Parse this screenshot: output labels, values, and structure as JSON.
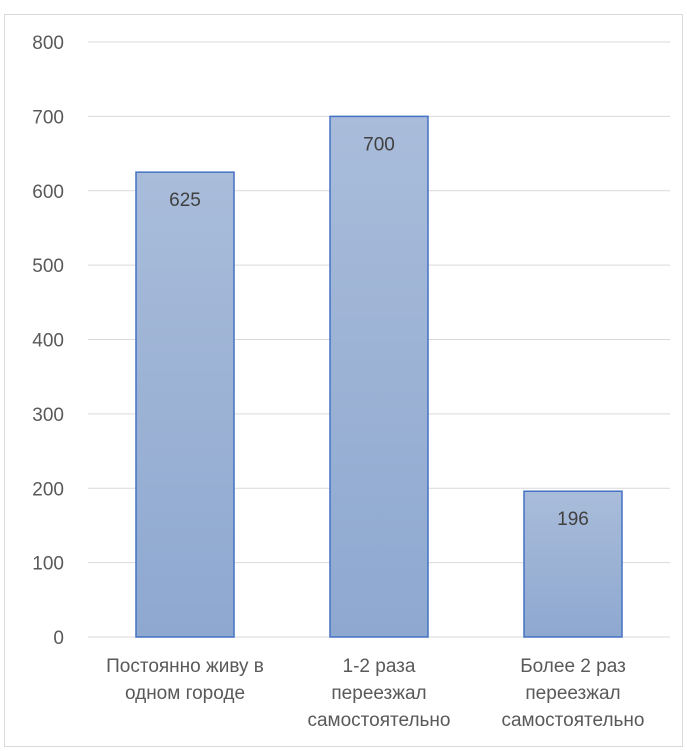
{
  "chart_data": {
    "type": "bar",
    "title": "",
    "xlabel": "",
    "ylabel": "",
    "categories": [
      [
        "Постоянно живу в",
        "одном городе"
      ],
      [
        "1-2 раза",
        "переезжал",
        "самостоятельно"
      ],
      [
        "Более 2 раз",
        "переезжал",
        "самостоятельно"
      ]
    ],
    "values": [
      625,
      700,
      196
    ],
    "data_labels": [
      "625",
      "700",
      "196"
    ],
    "ylim": [
      0,
      800
    ],
    "yticks": [
      0,
      100,
      200,
      300,
      400,
      500,
      600,
      700,
      800
    ],
    "ytick_labels": [
      "0",
      "100",
      "200",
      "300",
      "400",
      "500",
      "600",
      "700",
      "800"
    ],
    "grid": true,
    "legend": "none",
    "colors": {
      "bar_top": "#A9BCDA",
      "bar_bottom": "#8EA8D0",
      "bar_border": "#4472C4",
      "grid": "#D9D9D9",
      "text": "#595959",
      "label": "#404040"
    }
  }
}
